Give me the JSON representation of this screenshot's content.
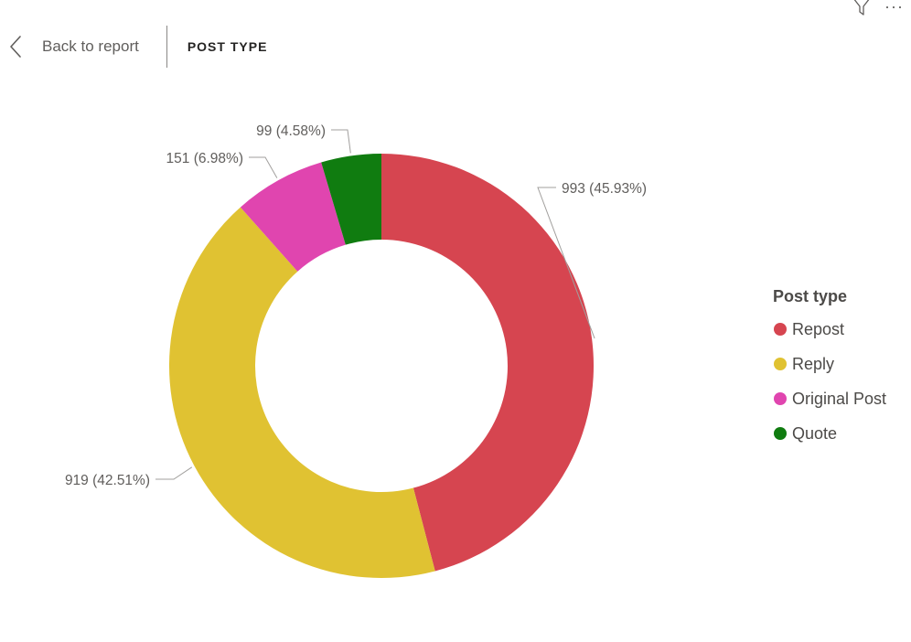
{
  "header": {
    "back_label": "Back to report",
    "page_title": "POST TYPE"
  },
  "icons": {
    "back": "chevron-left-icon",
    "filter": "filter-icon",
    "more": "more-options-icon"
  },
  "chart_data": {
    "type": "pie",
    "donut": true,
    "legend_title": "Post type",
    "legend_position": "right",
    "slices": [
      {
        "label": "Repost",
        "value": 993,
        "percent": 45.93,
        "data_label": "993 (45.93%)",
        "color": "#D64550"
      },
      {
        "label": "Reply",
        "value": 919,
        "percent": 42.51,
        "data_label": "919 (42.51%)",
        "color": "#E0C232"
      },
      {
        "label": "Original Post",
        "value": 151,
        "percent": 6.98,
        "data_label": "151 (6.98%)",
        "color": "#E045AF"
      },
      {
        "label": "Quote",
        "value": 99,
        "percent": 4.58,
        "data_label": "99 (4.58%)",
        "color": "#107C10"
      }
    ]
  }
}
